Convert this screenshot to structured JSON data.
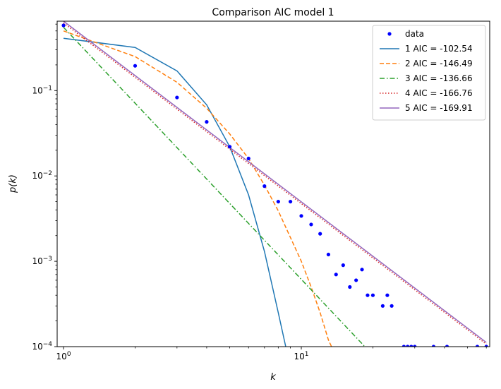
{
  "chart_data": {
    "type": "line",
    "title": "Comparison AIC model 1",
    "xlabel": "k",
    "ylabel": "p(k)",
    "xscale": "log",
    "yscale": "log",
    "xlim": [
      0.94,
      62
    ],
    "ylim": [
      0.0001,
      0.65
    ],
    "x_ticks": [
      {
        "value": 1,
        "base": "10",
        "exp": "0"
      },
      {
        "value": 10,
        "base": "10",
        "exp": "1"
      }
    ],
    "y_ticks": [
      {
        "value": 0.0001,
        "base": "10",
        "exp": "−4"
      },
      {
        "value": 0.001,
        "base": "10",
        "exp": "−3"
      },
      {
        "value": 0.01,
        "base": "10",
        "exp": "−2"
      },
      {
        "value": 0.1,
        "base": "10",
        "exp": "−1"
      }
    ],
    "grid": false,
    "legend_position": "top-right",
    "data_points": {
      "name": "data",
      "color": "#0000ff",
      "points": [
        [
          1,
          0.58
        ],
        [
          2,
          0.195
        ],
        [
          3,
          0.083
        ],
        [
          4,
          0.043
        ],
        [
          5,
          0.022
        ],
        [
          6,
          0.016
        ],
        [
          7,
          0.0076
        ],
        [
          8,
          0.005
        ],
        [
          9,
          0.005
        ],
        [
          10,
          0.0034
        ],
        [
          11,
          0.0027
        ],
        [
          12,
          0.0021
        ],
        [
          13,
          0.0012
        ],
        [
          14,
          0.0007
        ],
        [
          15,
          0.0009
        ],
        [
          16,
          0.0005
        ],
        [
          17,
          0.0006
        ],
        [
          18,
          0.0008
        ],
        [
          19,
          0.0004
        ],
        [
          20,
          0.0004
        ],
        [
          22,
          0.0003
        ],
        [
          23,
          0.0004
        ],
        [
          24,
          0.0003
        ],
        [
          27,
          0.0001
        ],
        [
          28,
          0.0001
        ],
        [
          29,
          0.0001
        ],
        [
          30,
          0.0001
        ],
        [
          36,
          0.0001
        ],
        [
          41,
          0.0001
        ],
        [
          55,
          0.0001
        ],
        [
          60,
          0.0001
        ]
      ]
    },
    "series": [
      {
        "name": "1 AIC = -102.54",
        "color": "#1f77b4",
        "dash": "solid",
        "points": [
          [
            1,
            0.41
          ],
          [
            2,
            0.32
          ],
          [
            3,
            0.17
          ],
          [
            4,
            0.068
          ],
          [
            5,
            0.022
          ],
          [
            6,
            0.006
          ],
          [
            7,
            0.0013
          ],
          [
            8,
            0.00025
          ],
          [
            8.6,
            0.0001
          ]
        ]
      },
      {
        "name": "2 AIC = -146.49",
        "color": "#ff7f0e",
        "dash": "dashed",
        "points": [
          [
            1,
            0.5
          ],
          [
            2,
            0.25
          ],
          [
            3,
            0.125
          ],
          [
            4,
            0.062
          ],
          [
            5,
            0.031
          ],
          [
            6,
            0.016
          ],
          [
            7,
            0.0078
          ],
          [
            8,
            0.0039
          ],
          [
            9,
            0.0019
          ],
          [
            10,
            0.001
          ],
          [
            11,
            0.0005
          ],
          [
            12,
            0.00025
          ],
          [
            13,
            0.00012
          ],
          [
            13.4,
            0.0001
          ]
        ]
      },
      {
        "name": "3 AIC = -136.66",
        "color": "#2ca02c",
        "dash": "dashdot",
        "points": [
          [
            1,
            0.55
          ],
          [
            18.5,
            0.0001
          ]
        ]
      },
      {
        "name": "4 AIC = -166.76",
        "color": "#d62728",
        "dash": "dotted",
        "points": [
          [
            1,
            0.62
          ],
          [
            60,
            0.000107
          ]
        ]
      },
      {
        "name": "5 AIC = -169.91",
        "color": "#9467bd",
        "dash": "solid",
        "points": [
          [
            1,
            0.65
          ],
          [
            60,
            0.000112
          ]
        ]
      }
    ]
  }
}
